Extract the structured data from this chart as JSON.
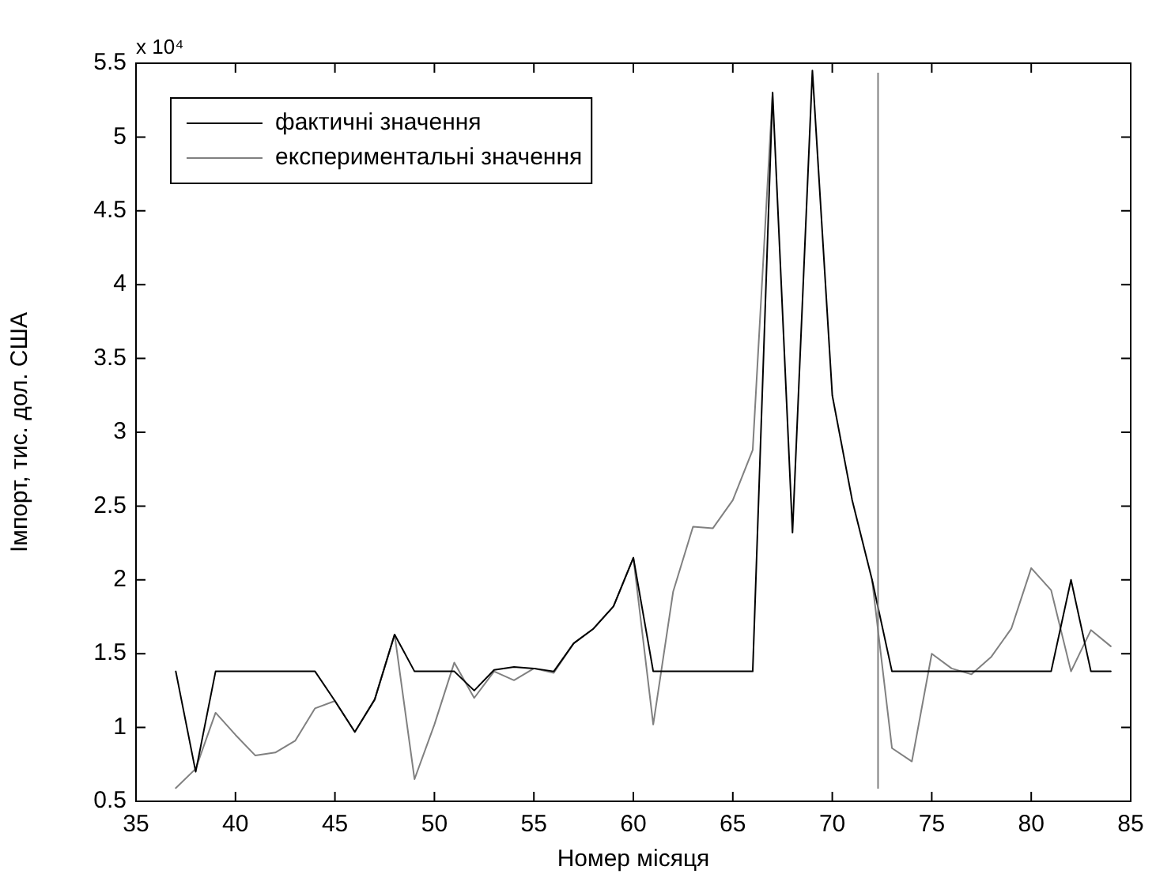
{
  "chart_data": {
    "type": "line",
    "xlabel": "Номер місяця",
    "ylabel": "Імпорт, тис. дол. США",
    "annotations": [
      "x 10⁴"
    ],
    "x": [
      37,
      38,
      39,
      40,
      41,
      42,
      43,
      44,
      45,
      46,
      47,
      48,
      49,
      50,
      51,
      52,
      53,
      54,
      55,
      56,
      57,
      58,
      59,
      60,
      61,
      62,
      63,
      64,
      65,
      66,
      67,
      68,
      69,
      70,
      71,
      72,
      73,
      74,
      75,
      76,
      77,
      78,
      79,
      80,
      81,
      82,
      83,
      84
    ],
    "series": [
      {
        "name": "фактичні значення",
        "color": "#000000",
        "values": [
          1.38,
          0.7,
          1.38,
          1.38,
          1.38,
          1.38,
          1.38,
          1.38,
          1.18,
          0.97,
          1.19,
          1.63,
          1.38,
          1.38,
          1.38,
          1.25,
          1.39,
          1.41,
          1.4,
          1.38,
          1.57,
          1.67,
          1.82,
          2.15,
          1.38,
          1.38,
          1.38,
          1.38,
          1.38,
          1.38,
          5.3,
          2.32,
          5.45,
          3.25,
          2.54,
          2.0,
          1.38,
          1.38,
          1.38,
          1.38,
          1.38,
          1.38,
          1.38,
          1.38,
          1.38,
          2.0,
          1.38,
          1.38
        ]
      },
      {
        "name": "експериментальні значення",
        "color": "#808080",
        "values": [
          0.59,
          0.72,
          1.1,
          0.95,
          0.81,
          0.83,
          0.91,
          1.13,
          1.18,
          0.97,
          1.19,
          1.63,
          0.65,
          1.02,
          1.44,
          1.2,
          1.38,
          1.32,
          1.4,
          1.37,
          1.57,
          1.67,
          1.82,
          2.15,
          1.02,
          1.92,
          2.36,
          2.35,
          2.54,
          2.88,
          5.3,
          null,
          null,
          null,
          null,
          2.0,
          0.86,
          0.77,
          1.5,
          1.4,
          1.36,
          1.48,
          1.67,
          2.08,
          1.93,
          1.38,
          1.66,
          1.55
        ]
      }
    ],
    "xlim": [
      35,
      85
    ],
    "xticks": [
      35,
      40,
      45,
      50,
      55,
      60,
      65,
      70,
      75,
      80,
      85
    ],
    "ylim": [
      0.5,
      5.5
    ],
    "yticks": [
      0.5,
      1,
      1.5,
      2,
      2.5,
      3,
      3.5,
      4,
      4.5,
      5,
      5.5
    ],
    "ref_lines": [
      {
        "axis": "x",
        "value": 72.3,
        "color": "#808080"
      }
    ],
    "grid": false,
    "legend": "top left",
    "marker": "none",
    "line_style": "solid"
  }
}
